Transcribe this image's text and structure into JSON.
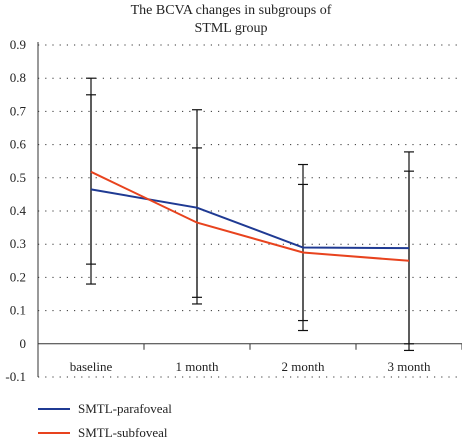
{
  "chart_data": {
    "type": "line",
    "title": "The BCVA changes in subgroups of STML group",
    "title_lines": [
      "The BCVA changes in subgroups of",
      "STML group"
    ],
    "xlabel": "",
    "ylabel": "",
    "categories": [
      "baseline",
      "1 month",
      "2 month",
      "3 month"
    ],
    "ylim": [
      -0.1,
      0.9
    ],
    "yticks": [
      "-0.1",
      "0",
      "0.1",
      "0.2",
      "0.3",
      "0.4",
      "0.5",
      "0.6",
      "0.7",
      "0.8",
      "0.9"
    ],
    "grid": "dotted-horizontal",
    "legend_position": "bottom-left",
    "series": [
      {
        "name": "SMTL-parafoveal",
        "color": "#1f3a93",
        "values": [
          0.465,
          0.41,
          0.29,
          0.288
        ],
        "error_low": [
          0.18,
          0.12,
          0.04,
          -0.02
        ],
        "error_high": [
          0.8,
          0.705,
          0.54,
          0.578
        ]
      },
      {
        "name": "SMTL-subfoveal",
        "color": "#e8431e",
        "values": [
          0.518,
          0.365,
          0.275,
          0.25
        ],
        "error_low": [
          0.24,
          0.14,
          0.07,
          0.0
        ],
        "error_high": [
          0.75,
          0.59,
          0.48,
          0.52
        ]
      }
    ]
  }
}
